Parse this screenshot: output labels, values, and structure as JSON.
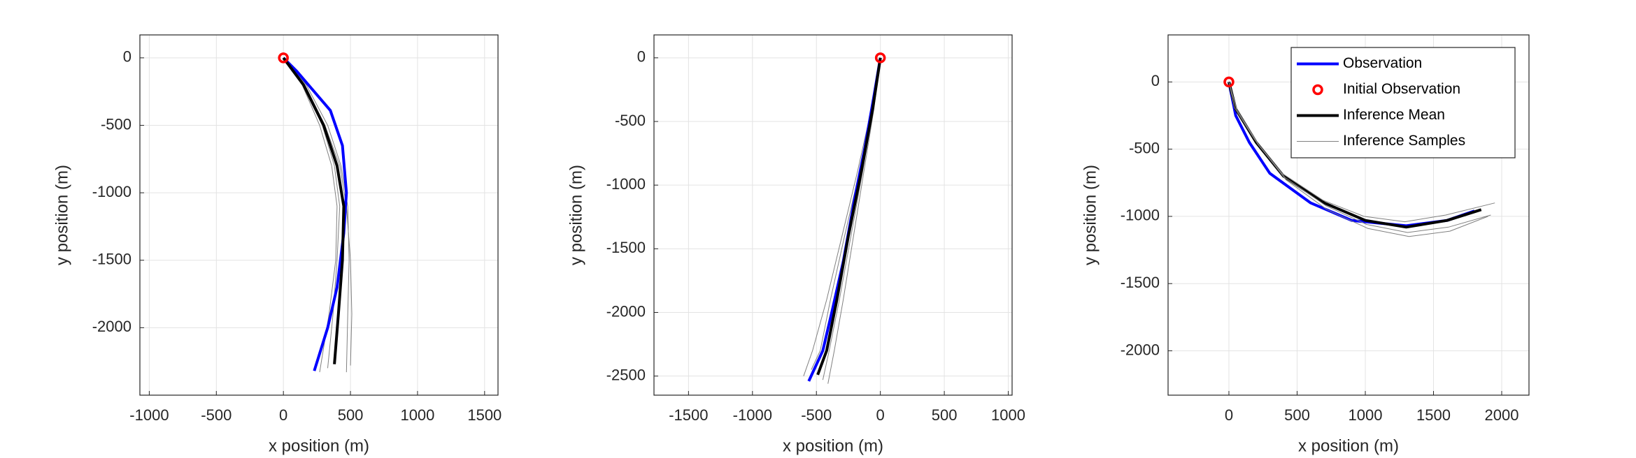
{
  "chart_data": [
    {
      "type": "line",
      "xlabel": "x position (m)",
      "ylabel": "y position (m)",
      "xlim": [
        -1070,
        1600
      ],
      "ylim": [
        -2500,
        170
      ],
      "xticks": [
        -1000,
        -500,
        0,
        500,
        1000,
        1500
      ],
      "yticks": [
        -2000,
        -1500,
        -1000,
        -500,
        0
      ],
      "grid": true,
      "series": [
        {
          "color": "#808080",
          "style": "line",
          "width": 1,
          "lines": [
            {
              "x": [
                0,
                170,
                330,
                430,
                480,
                490,
                480,
                470
              ],
              "y": [
                0,
                -200,
                -500,
                -800,
                -1100,
                -1500,
                -1900,
                -2330
              ]
            },
            {
              "x": [
                0,
                140,
                270,
                360,
                400,
                390,
                340,
                270
              ],
              "y": [
                0,
                -200,
                -500,
                -800,
                -1100,
                -1500,
                -1900,
                -2330
              ]
            },
            {
              "x": [
                0,
                160,
                310,
                420,
                470,
                500,
                510,
                500
              ],
              "y": [
                0,
                -200,
                -500,
                -800,
                -1100,
                -1500,
                -1900,
                -2280
              ]
            },
            {
              "x": [
                0,
                150,
                290,
                380,
                420,
                400,
                370,
                330
              ],
              "y": [
                0,
                -200,
                -500,
                -800,
                -1100,
                -1500,
                -1900,
                -2300
              ]
            }
          ]
        },
        {
          "color": "#0000ff",
          "style": "line",
          "width": 4,
          "x": [
            0,
            100,
            350,
            440,
            470,
            450,
            400,
            330,
            230
          ],
          "y": [
            0,
            -100,
            -390,
            -650,
            -1000,
            -1300,
            -1700,
            -2000,
            -2320
          ]
        },
        {
          "color": "#000000",
          "style": "line",
          "width": 4,
          "x": [
            0,
            150,
            300,
            400,
            450,
            440,
            410,
            380
          ],
          "y": [
            0,
            -200,
            -500,
            -800,
            -1100,
            -1500,
            -1900,
            -2270
          ]
        },
        {
          "color": "#ff0000",
          "style": "circle",
          "x": [
            0
          ],
          "y": [
            0
          ]
        }
      ]
    },
    {
      "type": "line",
      "xlabel": "x position (m)",
      "ylabel": "y position (m)",
      "xlim": [
        -1770,
        1030
      ],
      "ylim": [
        -2650,
        180
      ],
      "xticks": [
        -1500,
        -1000,
        -500,
        0,
        500,
        1000
      ],
      "yticks": [
        -2500,
        -2000,
        -1500,
        -1000,
        -500,
        0
      ],
      "grid": true,
      "series": [
        {
          "color": "#808080",
          "style": "line",
          "width": 1,
          "lines": [
            {
              "x": [
                0,
                -70,
                -180,
                -300,
                -420,
                -530,
                -600
              ],
              "y": [
                0,
                -400,
                -900,
                -1400,
                -1900,
                -2300,
                -2500
              ]
            },
            {
              "x": [
                0,
                -50,
                -130,
                -210,
                -290,
                -360,
                -410
              ],
              "y": [
                0,
                -400,
                -900,
                -1400,
                -1900,
                -2300,
                -2560
              ]
            },
            {
              "x": [
                0,
                -65,
                -165,
                -280,
                -390,
                -470,
                -540
              ],
              "y": [
                0,
                -400,
                -900,
                -1400,
                -1900,
                -2300,
                -2450
              ]
            },
            {
              "x": [
                0,
                -55,
                -140,
                -230,
                -320,
                -400,
                -450
              ],
              "y": [
                0,
                -400,
                -900,
                -1400,
                -1900,
                -2300,
                -2530
              ]
            }
          ]
        },
        {
          "color": "#0000ff",
          "style": "line",
          "width": 4,
          "x": [
            0,
            -50,
            -120,
            -200,
            -290,
            -380,
            -450,
            -560
          ],
          "y": [
            0,
            -300,
            -700,
            -1100,
            -1600,
            -2000,
            -2300,
            -2540
          ]
        },
        {
          "color": "#000000",
          "style": "line",
          "width": 4,
          "x": [
            0,
            -60,
            -150,
            -250,
            -340,
            -420,
            -490
          ],
          "y": [
            0,
            -400,
            -900,
            -1400,
            -1900,
            -2300,
            -2490
          ]
        },
        {
          "color": "#ff0000",
          "style": "circle",
          "x": [
            0
          ],
          "y": [
            0
          ]
        }
      ]
    },
    {
      "type": "line",
      "xlabel": "x position (m)",
      "ylabel": "y position (m)",
      "xlim": [
        -446,
        2200
      ],
      "ylim": [
        -2330,
        350
      ],
      "xticks": [
        0,
        500,
        1000,
        1500,
        2000
      ],
      "yticks": [
        -2000,
        -1500,
        -1000,
        -500,
        0
      ],
      "grid": true,
      "legend": "northeast",
      "series": [
        {
          "name": "Observation",
          "color": "#0000ff",
          "style": "line",
          "width": 4,
          "x": [
            0,
            50,
            150,
            300,
            600,
            900,
            1300,
            1600,
            1800
          ],
          "y": [
            0,
            -250,
            -450,
            -680,
            -900,
            -1030,
            -1070,
            -1030,
            -960
          ]
        },
        {
          "name": "Initial Observation",
          "color": "#ff0000",
          "style": "circle",
          "x": [
            0
          ],
          "y": [
            0
          ]
        },
        {
          "name": "Inference Mean",
          "color": "#000000",
          "style": "line",
          "width": 4,
          "x": [
            0,
            50,
            200,
            400,
            700,
            1000,
            1300,
            1600,
            1850
          ],
          "y": [
            0,
            -200,
            -450,
            -700,
            -900,
            -1030,
            -1080,
            -1030,
            -950
          ]
        },
        {
          "name": "Inference Samples",
          "color": "#808080",
          "style": "line",
          "width": 1,
          "lines": [
            {
              "x": [
                0,
                60,
                220,
                420,
                720,
                1020,
                1320,
                1620,
                1900
              ],
              "y": [
                0,
                -210,
                -470,
                -730,
                -950,
                -1090,
                -1150,
                -1110,
                -1000
              ]
            },
            {
              "x": [
                0,
                40,
                190,
                390,
                690,
                990,
                1290,
                1590,
                1950
              ],
              "y": [
                0,
                -190,
                -430,
                -680,
                -880,
                -1000,
                -1040,
                -990,
                -900
              ]
            },
            {
              "x": [
                0,
                55,
                210,
                410,
                710,
                1010,
                1310,
                1610,
                1920
              ],
              "y": [
                0,
                -200,
                -460,
                -710,
                -920,
                -1060,
                -1120,
                -1080,
                -990
              ]
            }
          ]
        }
      ]
    }
  ]
}
